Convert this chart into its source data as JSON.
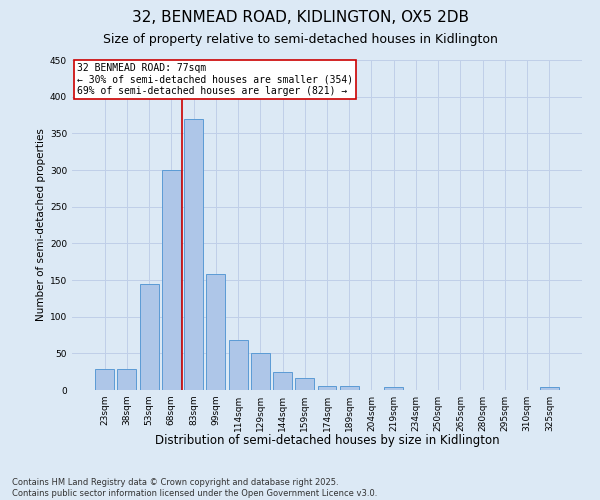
{
  "title_line1": "32, BENMEAD ROAD, KIDLINGTON, OX5 2DB",
  "title_line2": "Size of property relative to semi-detached houses in Kidlington",
  "xlabel": "Distribution of semi-detached houses by size in Kidlington",
  "ylabel": "Number of semi-detached properties",
  "categories": [
    "23sqm",
    "38sqm",
    "53sqm",
    "68sqm",
    "83sqm",
    "99sqm",
    "114sqm",
    "129sqm",
    "144sqm",
    "159sqm",
    "174sqm",
    "189sqm",
    "204sqm",
    "219sqm",
    "234sqm",
    "250sqm",
    "265sqm",
    "280sqm",
    "295sqm",
    "310sqm",
    "325sqm"
  ],
  "values": [
    28,
    29,
    145,
    300,
    370,
    158,
    68,
    50,
    25,
    16,
    6,
    6,
    0,
    4,
    0,
    0,
    0,
    0,
    0,
    0,
    4
  ],
  "bar_color": "#aec6e8",
  "bar_edge_color": "#5b9bd5",
  "grid_color": "#c0cfe8",
  "background_color": "#dce9f5",
  "annotation_box_text": "32 BENMEAD ROAD: 77sqm\n← 30% of semi-detached houses are smaller (354)\n69% of semi-detached houses are larger (821) →",
  "vline_x_index": 3.5,
  "vline_color": "#cc0000",
  "annotation_box_color": "#ffffff",
  "annotation_box_edge_color": "#cc0000",
  "ylim": [
    0,
    450
  ],
  "yticks": [
    0,
    50,
    100,
    150,
    200,
    250,
    300,
    350,
    400,
    450
  ],
  "footer_text": "Contains HM Land Registry data © Crown copyright and database right 2025.\nContains public sector information licensed under the Open Government Licence v3.0.",
  "title_fontsize": 11,
  "subtitle_fontsize": 9,
  "xlabel_fontsize": 8.5,
  "ylabel_fontsize": 7.5,
  "tick_fontsize": 6.5,
  "annotation_fontsize": 7,
  "footer_fontsize": 6
}
